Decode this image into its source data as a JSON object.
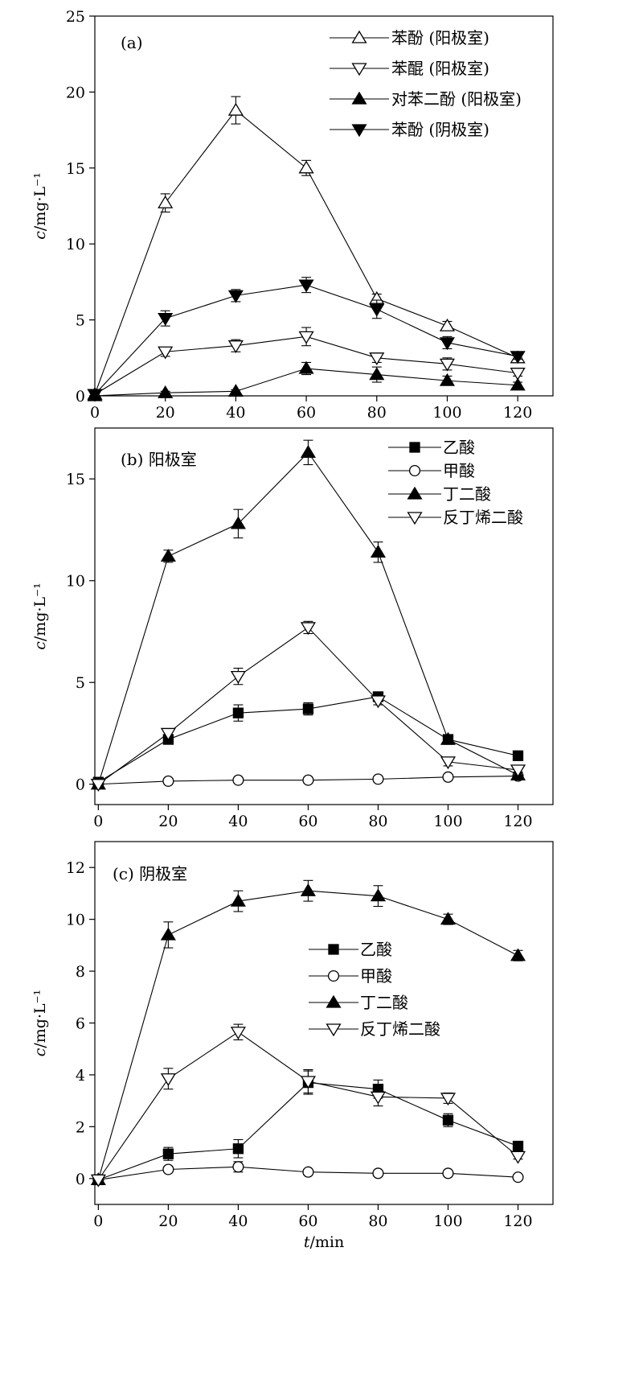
{
  "chart_data": [
    {
      "type": "line",
      "panel_label": "(a)",
      "ylabel": "c/mg·L⁻¹",
      "xlabel": "",
      "x": [
        0,
        20,
        40,
        60,
        80,
        100,
        120
      ],
      "xlim": [
        0,
        130
      ],
      "ylim": [
        0,
        25
      ],
      "xticks": [
        0,
        20,
        40,
        60,
        80,
        100,
        120
      ],
      "yticks": [
        0,
        5,
        10,
        15,
        20,
        25
      ],
      "legend_position": "top-right",
      "grid": false,
      "series": [
        {
          "name": "苯酚 (阳极室)",
          "marker": "triangle-up-open",
          "values": [
            0.1,
            12.7,
            18.8,
            15.0,
            6.4,
            4.6,
            2.5
          ],
          "errors": [
            0,
            0.6,
            0.9,
            0.5,
            0.3,
            0.3,
            0.2
          ]
        },
        {
          "name": "苯醌 (阳极室)",
          "marker": "triangle-down-open",
          "values": [
            0.1,
            2.9,
            3.3,
            3.9,
            2.5,
            2.1,
            1.5
          ],
          "errors": [
            0,
            0.3,
            0.4,
            0.6,
            0.3,
            0.4,
            0.2
          ]
        },
        {
          "name": "对苯二酚 (阳极室)",
          "marker": "triangle-up-filled",
          "values": [
            0.0,
            0.2,
            0.3,
            1.8,
            1.4,
            1.0,
            0.7
          ],
          "errors": [
            0,
            0.1,
            0.1,
            0.4,
            0.5,
            0.3,
            0.2
          ]
        },
        {
          "name": "苯酚 (阴极室)",
          "marker": "triangle-down-filled",
          "values": [
            0.1,
            5.1,
            6.6,
            7.3,
            5.7,
            3.5,
            2.6
          ],
          "errors": [
            0,
            0.5,
            0.4,
            0.5,
            0.6,
            0.4,
            0.2
          ]
        }
      ]
    },
    {
      "type": "line",
      "panel_label": "(b)  阳极室",
      "ylabel": "c/mg·L⁻¹",
      "xlabel": "",
      "x": [
        0,
        20,
        40,
        60,
        80,
        100,
        120
      ],
      "xlim": [
        -1,
        130
      ],
      "ylim": [
        -1,
        17.5
      ],
      "xticks": [
        0,
        20,
        40,
        60,
        80,
        100,
        120
      ],
      "yticks": [
        0,
        5,
        10,
        15
      ],
      "legend_position": "top-right",
      "grid": false,
      "series": [
        {
          "name": "乙酸",
          "marker": "square-filled",
          "values": [
            0.1,
            2.2,
            3.5,
            3.7,
            4.3,
            2.2,
            1.4
          ],
          "errors": [
            0,
            0.2,
            0.4,
            0.3,
            0.2,
            0.2,
            0.1
          ]
        },
        {
          "name": "甲酸",
          "marker": "circle-open",
          "values": [
            0.0,
            0.15,
            0.2,
            0.2,
            0.25,
            0.35,
            0.4
          ],
          "errors": [
            0,
            0.05,
            0.05,
            0.05,
            0.05,
            0.1,
            0.1
          ]
        },
        {
          "name": "丁二酸",
          "marker": "triangle-up-filled",
          "values": [
            0.0,
            11.2,
            12.8,
            16.3,
            11.4,
            2.2,
            0.45
          ],
          "errors": [
            0,
            0.3,
            0.7,
            0.6,
            0.5,
            0.2,
            0.1
          ]
        },
        {
          "name": "反丁烯二酸",
          "marker": "triangle-down-open",
          "values": [
            0.0,
            2.5,
            5.3,
            7.7,
            4.1,
            1.1,
            0.7
          ],
          "errors": [
            0,
            0.2,
            0.4,
            0.3,
            0.2,
            0.2,
            0.1
          ]
        }
      ]
    },
    {
      "type": "line",
      "panel_label": "(c)  阴极室",
      "ylabel": "c/mg·L⁻¹",
      "xlabel": "t/min",
      "x": [
        0,
        20,
        40,
        60,
        80,
        100,
        120
      ],
      "xlim": [
        -1,
        130
      ],
      "ylim": [
        -1,
        13
      ],
      "xticks": [
        0,
        20,
        40,
        60,
        80,
        100,
        120
      ],
      "yticks": [
        0,
        2,
        4,
        6,
        8,
        10,
        12
      ],
      "legend_position": "middle-right",
      "grid": false,
      "series": [
        {
          "name": "乙酸",
          "marker": "square-filled",
          "values": [
            -0.05,
            0.95,
            1.15,
            3.7,
            3.45,
            2.25,
            1.25
          ],
          "errors": [
            0,
            0.25,
            0.35,
            0.45,
            0.35,
            0.25,
            0.15
          ]
        },
        {
          "name": "甲酸",
          "marker": "circle-open",
          "values": [
            -0.05,
            0.35,
            0.45,
            0.25,
            0.2,
            0.2,
            0.05
          ],
          "errors": [
            0,
            0.1,
            0.2,
            0.1,
            0.1,
            0.05,
            0.05
          ]
        },
        {
          "name": "丁二酸",
          "marker": "triangle-up-filled",
          "values": [
            -0.05,
            9.4,
            10.7,
            11.1,
            10.9,
            10.0,
            8.6
          ],
          "errors": [
            0,
            0.5,
            0.4,
            0.4,
            0.4,
            0.2,
            0.2
          ]
        },
        {
          "name": "反丁烯二酸",
          "marker": "triangle-down-open",
          "values": [
            -0.05,
            3.85,
            5.65,
            3.75,
            3.15,
            3.1,
            0.85
          ],
          "errors": [
            0,
            0.4,
            0.3,
            0.45,
            0.35,
            0.2,
            0.1
          ]
        }
      ]
    }
  ]
}
